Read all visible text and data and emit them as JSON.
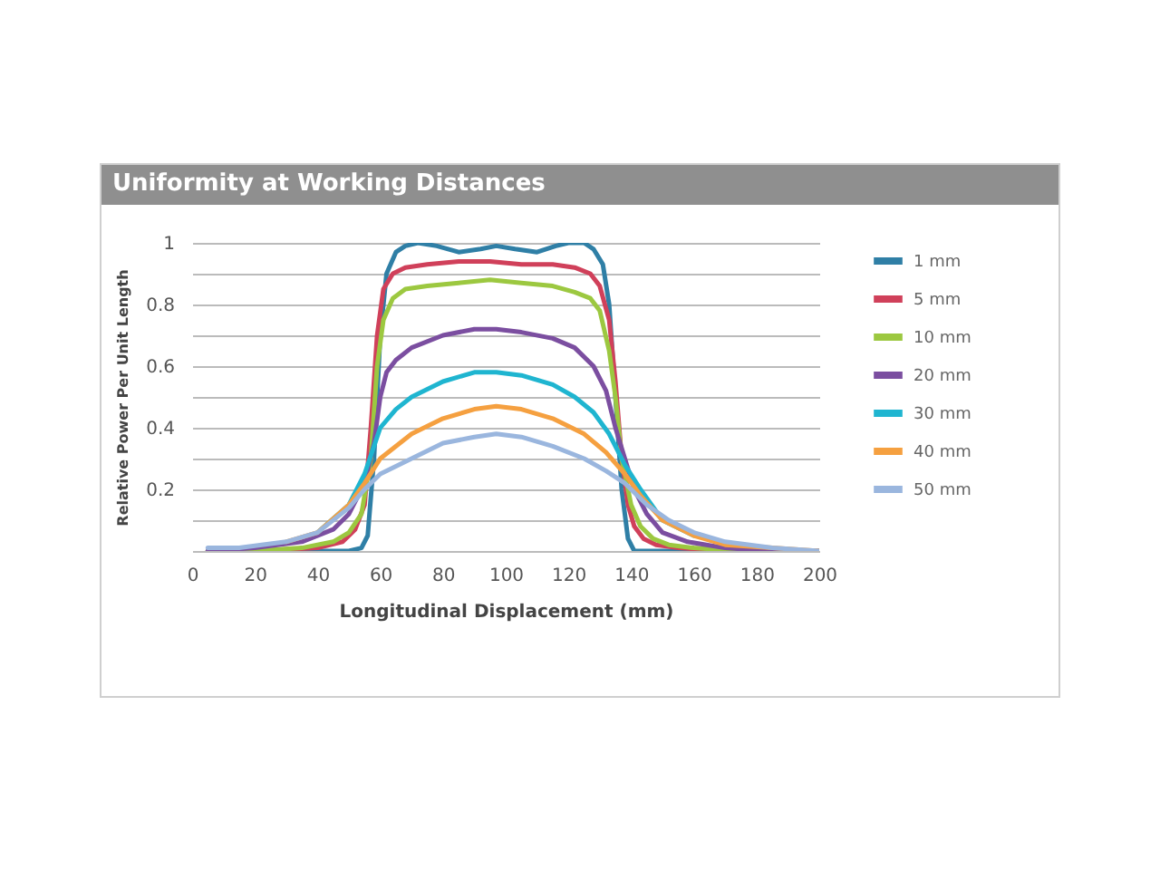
{
  "chart_data": {
    "type": "line",
    "title": "Uniformity at Working Distances",
    "xlabel": "Longitudinal Displacement (mm)",
    "ylabel": "Relative Power Per Unit Length",
    "xlim": [
      0,
      200
    ],
    "xticks": [
      0,
      20,
      40,
      60,
      80,
      100,
      120,
      140,
      160,
      180,
      200
    ],
    "ylim": [
      0,
      1
    ],
    "yticks": [
      {
        "value": 0,
        "label": null
      },
      {
        "value": 0.1,
        "label": null
      },
      0.2,
      {
        "value": 0.3,
        "label": null
      },
      0.4,
      {
        "value": 0.5,
        "label": null
      },
      0.6,
      {
        "value": 0.7,
        "label": null
      },
      0.8,
      {
        "value": 0.9,
        "label": null
      },
      1
    ],
    "grid": "y",
    "legend": "top right",
    "marker": "none",
    "line_style": "solid",
    "series": [
      {
        "name": "1 mm",
        "color": "#2f7fa6",
        "x": [
          5,
          20,
          40,
          50,
          54,
          56,
          58,
          60,
          62,
          65,
          68,
          72,
          78,
          85,
          92,
          97,
          103,
          110,
          116,
          120,
          125,
          128,
          131,
          133,
          135,
          137,
          139,
          141,
          145,
          160,
          180,
          200
        ],
        "values": [
          0,
          0,
          0,
          0,
          0.01,
          0.05,
          0.3,
          0.7,
          0.9,
          0.97,
          0.99,
          1,
          0.99,
          0.97,
          0.98,
          0.99,
          0.98,
          0.97,
          0.99,
          1,
          1,
          0.98,
          0.93,
          0.8,
          0.5,
          0.2,
          0.04,
          0,
          0,
          0,
          0,
          0
        ]
      },
      {
        "name": "5 mm",
        "color": "#d0405a",
        "x": [
          5,
          20,
          40,
          48,
          52,
          55,
          57,
          59,
          61,
          64,
          68,
          75,
          85,
          95,
          105,
          115,
          122,
          127,
          130,
          133,
          135,
          137,
          139,
          141,
          144,
          148,
          155,
          170,
          200
        ],
        "values": [
          0,
          0,
          0.01,
          0.03,
          0.07,
          0.15,
          0.4,
          0.7,
          0.85,
          0.9,
          0.92,
          0.93,
          0.94,
          0.94,
          0.93,
          0.93,
          0.92,
          0.9,
          0.86,
          0.75,
          0.55,
          0.3,
          0.15,
          0.08,
          0.04,
          0.02,
          0.01,
          0,
          0
        ]
      },
      {
        "name": "10 mm",
        "color": "#9cc840",
        "x": [
          5,
          20,
          35,
          45,
          50,
          54,
          57,
          59,
          61,
          64,
          68,
          75,
          85,
          95,
          105,
          115,
          122,
          127,
          130,
          133,
          135,
          137,
          140,
          143,
          147,
          152,
          160,
          175,
          200
        ],
        "values": [
          0,
          0,
          0.01,
          0.03,
          0.06,
          0.12,
          0.3,
          0.6,
          0.75,
          0.82,
          0.85,
          0.86,
          0.87,
          0.88,
          0.87,
          0.86,
          0.84,
          0.82,
          0.78,
          0.65,
          0.5,
          0.3,
          0.15,
          0.08,
          0.04,
          0.02,
          0.01,
          0,
          0
        ]
      },
      {
        "name": "20 mm",
        "color": "#7b4ea0",
        "x": [
          5,
          20,
          35,
          45,
          50,
          55,
          58,
          60,
          62,
          65,
          70,
          80,
          90,
          97,
          105,
          115,
          122,
          128,
          132,
          135,
          138,
          141,
          145,
          150,
          158,
          170,
          185,
          200
        ],
        "values": [
          0,
          0.01,
          0.03,
          0.07,
          0.12,
          0.22,
          0.35,
          0.5,
          0.58,
          0.62,
          0.66,
          0.7,
          0.72,
          0.72,
          0.71,
          0.69,
          0.66,
          0.6,
          0.52,
          0.4,
          0.3,
          0.2,
          0.12,
          0.06,
          0.03,
          0.01,
          0,
          0
        ]
      },
      {
        "name": "30 mm",
        "color": "#1fb5d0",
        "x": [
          40,
          50,
          55,
          60,
          65,
          70,
          80,
          90,
          97,
          105,
          115,
          122,
          128,
          133,
          138,
          143,
          150,
          160
        ],
        "values": [
          0.06,
          0.15,
          0.25,
          0.4,
          0.46,
          0.5,
          0.55,
          0.58,
          0.58,
          0.57,
          0.54,
          0.5,
          0.45,
          0.38,
          0.28,
          0.2,
          0.1,
          0.05
        ]
      },
      {
        "name": "40 mm",
        "color": "#f5a040",
        "x": [
          30,
          40,
          50,
          55,
          60,
          70,
          80,
          90,
          97,
          105,
          115,
          125,
          132,
          138,
          143,
          150,
          160,
          170,
          185,
          200
        ],
        "values": [
          0.03,
          0.06,
          0.15,
          0.22,
          0.3,
          0.38,
          0.43,
          0.46,
          0.47,
          0.46,
          0.43,
          0.38,
          0.32,
          0.25,
          0.18,
          0.1,
          0.05,
          0.02,
          0.01,
          0
        ]
      },
      {
        "name": "50 mm",
        "color": "#9ab6de",
        "x": [
          5,
          15,
          30,
          40,
          50,
          55,
          60,
          70,
          80,
          90,
          97,
          105,
          115,
          125,
          132,
          138,
          145,
          152,
          160,
          170,
          185,
          200
        ],
        "values": [
          0.01,
          0.01,
          0.03,
          0.06,
          0.14,
          0.2,
          0.25,
          0.3,
          0.35,
          0.37,
          0.38,
          0.37,
          0.34,
          0.3,
          0.26,
          0.22,
          0.15,
          0.1,
          0.06,
          0.03,
          0.01,
          0
        ]
      }
    ]
  }
}
